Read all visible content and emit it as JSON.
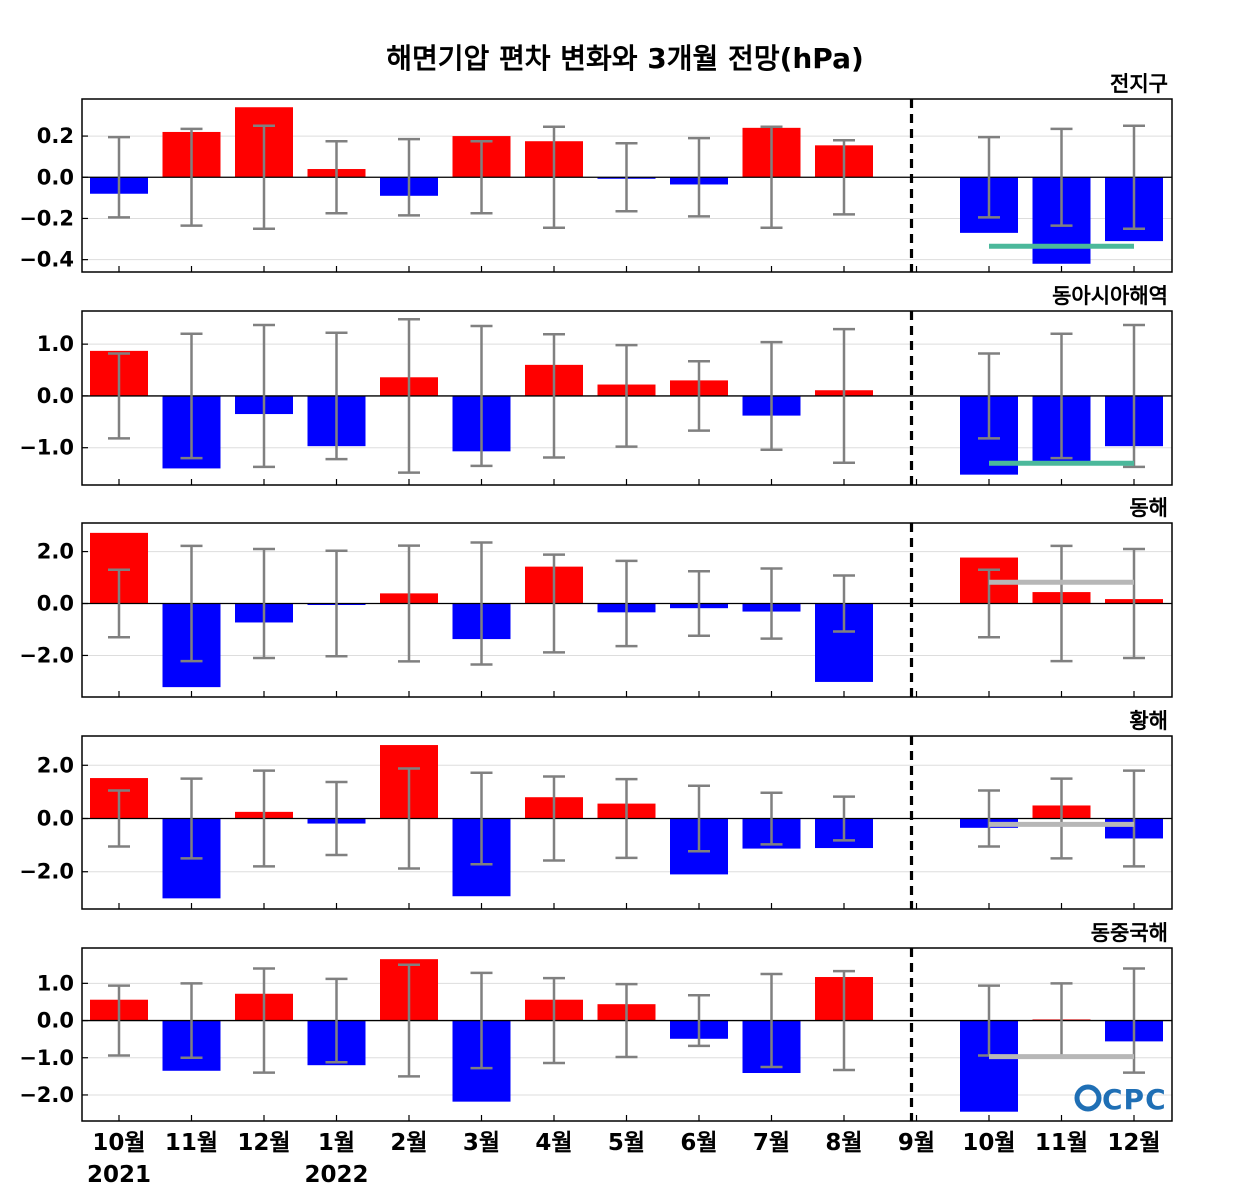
{
  "title": "해면기압 편차 변화와 3개월 전망(hPa)",
  "logo": "CPC",
  "colors": {
    "positive": "#ff0000",
    "negative": "#0000ff",
    "errorbar": "#808080",
    "forecast_line_teal": "#4bb89b",
    "forecast_line_gray": "#b7b7b7"
  },
  "chart_data": {
    "type": "bar",
    "categories": [
      "10월",
      "11월",
      "12월",
      "1월",
      "2월",
      "3월",
      "4월",
      "5월",
      "6월",
      "7월",
      "8월",
      "9월",
      "10월",
      "11월",
      "12월"
    ],
    "year_labels": [
      {
        "category_index": 0,
        "text": "2021"
      },
      {
        "category_index": 3,
        "text": "2022"
      }
    ],
    "forecast_divider_after_index": 11,
    "grid": true,
    "panels": [
      {
        "name": "전지구",
        "ylim": [
          -0.46,
          0.38
        ],
        "yticks": [
          0.2,
          0.0,
          -0.2,
          -0.4
        ],
        "ytick_labels": [
          "0.2",
          "0.0",
          "−0.2",
          "−0.4"
        ],
        "values": [
          -0.08,
          0.22,
          0.34,
          0.04,
          -0.09,
          0.2,
          0.175,
          -0.005,
          -0.035,
          0.24,
          0.155,
          0.0,
          -0.27,
          -0.42,
          -0.31
        ],
        "error_half": [
          0.195,
          0.235,
          0.25,
          0.175,
          0.185,
          0.175,
          0.245,
          0.165,
          0.19,
          0.245,
          0.18,
          0.0,
          0.195,
          0.235,
          0.25
        ],
        "forecast_line": {
          "value": -0.335,
          "color": "teal"
        }
      },
      {
        "name": "동아시아해역",
        "ylim": [
          -1.72,
          1.64
        ],
        "yticks": [
          1.0,
          0.0,
          -1.0
        ],
        "ytick_labels": [
          "1.0",
          "0.0",
          "−1.0"
        ],
        "values": [
          0.87,
          -1.4,
          -0.35,
          -0.97,
          0.36,
          -1.07,
          0.6,
          0.22,
          0.3,
          -0.38,
          0.11,
          0.0,
          -1.52,
          -1.3,
          -0.97
        ],
        "error_half": [
          0.82,
          1.2,
          1.37,
          1.22,
          1.48,
          1.35,
          1.19,
          0.98,
          0.67,
          1.04,
          1.29,
          0.0,
          0.82,
          1.2,
          1.37
        ],
        "forecast_line": {
          "value": -1.3,
          "color": "teal"
        }
      },
      {
        "name": "동해",
        "ylim": [
          -3.6,
          3.1
        ],
        "yticks": [
          2.0,
          0.0,
          -2.0
        ],
        "ytick_labels": [
          "2.0",
          "0.0",
          "−2.0"
        ],
        "values": [
          2.72,
          -3.22,
          -0.73,
          -0.04,
          0.39,
          -1.37,
          1.42,
          -0.34,
          -0.18,
          -0.31,
          -3.02,
          0.0,
          1.77,
          0.44,
          0.17
        ],
        "error_half": [
          1.3,
          2.22,
          2.1,
          2.03,
          2.23,
          2.35,
          1.88,
          1.64,
          1.24,
          1.35,
          1.08,
          0.0,
          1.3,
          2.22,
          2.1
        ],
        "forecast_line": {
          "value": 0.82,
          "color": "gray"
        }
      },
      {
        "name": "황해",
        "ylim": [
          -3.4,
          3.1
        ],
        "yticks": [
          2.0,
          0.0,
          -2.0
        ],
        "ytick_labels": [
          "2.0",
          "0.0",
          "−2.0"
        ],
        "values": [
          1.52,
          -3.0,
          0.25,
          -0.19,
          2.76,
          -2.92,
          0.8,
          0.56,
          -2.1,
          -1.13,
          -1.11,
          0.0,
          -0.35,
          0.49,
          -0.75
        ],
        "error_half": [
          1.05,
          1.5,
          1.8,
          1.37,
          1.88,
          1.72,
          1.58,
          1.48,
          1.23,
          0.97,
          0.82,
          0.0,
          1.05,
          1.5,
          1.8
        ],
        "forecast_line": {
          "value": -0.22,
          "color": "gray"
        }
      },
      {
        "name": "동중국해",
        "ylim": [
          -2.7,
          1.95
        ],
        "yticks": [
          1.0,
          0.0,
          -1.0,
          -2.0
        ],
        "ytick_labels": [
          "1.0",
          "0.0",
          "−1.0",
          "−2.0"
        ],
        "values": [
          0.56,
          -1.35,
          0.72,
          -1.2,
          1.65,
          -2.18,
          0.56,
          0.44,
          -0.49,
          -1.41,
          1.17,
          0.0,
          -2.45,
          0.03,
          -0.56
        ],
        "error_half": [
          0.94,
          1.0,
          1.4,
          1.12,
          1.5,
          1.28,
          1.14,
          0.98,
          0.68,
          1.25,
          1.33,
          0.0,
          0.94,
          1.0,
          1.4
        ],
        "forecast_line": {
          "value": -0.97,
          "color": "gray"
        }
      }
    ]
  }
}
